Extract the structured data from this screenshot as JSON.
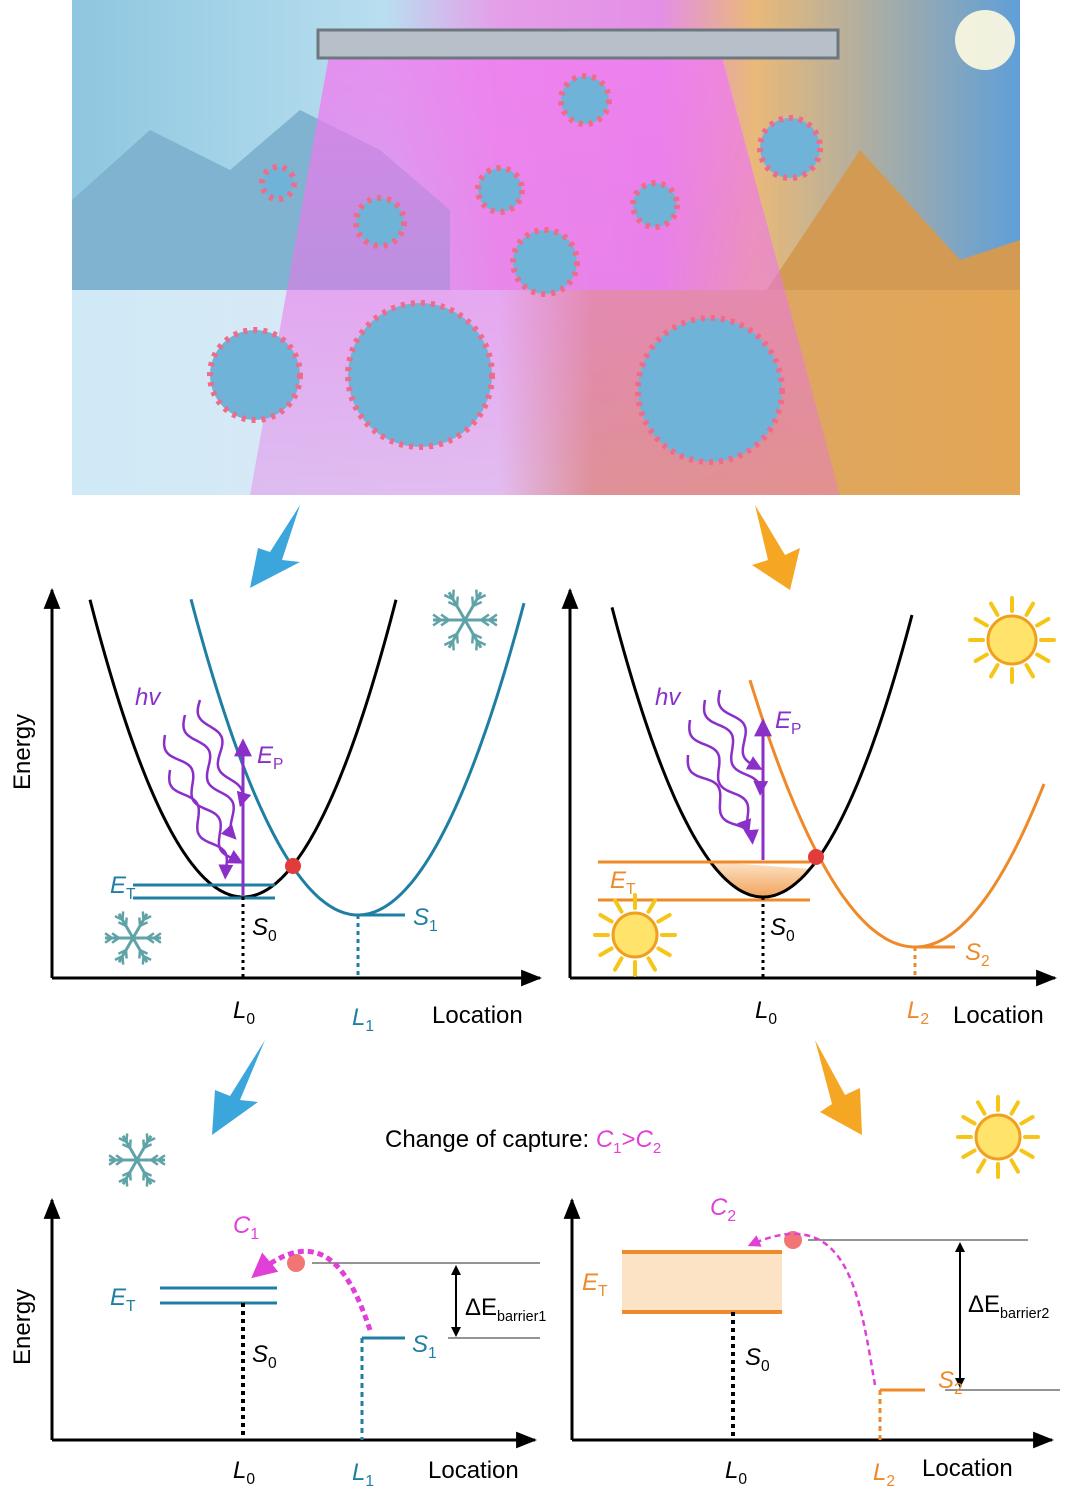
{
  "panels": [
    {
      "y_label": "Energy",
      "photon": "hv",
      "pump": {
        "main": "E",
        "sub": "P"
      },
      "trap": {
        "main": "E",
        "sub": "T"
      },
      "ground": {
        "main": "S",
        "sub": "0"
      },
      "state": {
        "main": "S",
        "sub": "1"
      },
      "x_ticks": [
        {
          "main": "L",
          "sub": "0"
        },
        {
          "main": "L",
          "sub": "1"
        }
      ],
      "x_label": "Location"
    },
    {
      "photon": "hv",
      "pump": {
        "main": "E",
        "sub": "P"
      },
      "trap": {
        "main": "E",
        "sub": "T"
      },
      "ground": {
        "main": "S",
        "sub": "0"
      },
      "state": {
        "main": "S",
        "sub": "2"
      },
      "x_ticks": [
        {
          "main": "L",
          "sub": "0"
        },
        {
          "main": "L",
          "sub": "2"
        }
      ],
      "x_label": "Location"
    }
  ],
  "caption": {
    "text": "Change of capture: ",
    "left": {
      "main": "C",
      "sub": "1"
    },
    "operator": ">",
    "right": {
      "main": "C",
      "sub": "2"
    }
  },
  "bottom_panels": [
    {
      "y_label": "Energy",
      "capture": {
        "main": "C",
        "sub": "1"
      },
      "trap": {
        "main": "E",
        "sub": "T"
      },
      "ground": {
        "main": "S",
        "sub": "0"
      },
      "state": {
        "main": "S",
        "sub": "1"
      },
      "barrier": {
        "main": "ΔE",
        "sub": "barrier1"
      },
      "x_ticks": [
        {
          "main": "L",
          "sub": "0"
        },
        {
          "main": "L",
          "sub": "1"
        }
      ],
      "x_label": "Location"
    },
    {
      "capture": {
        "main": "C",
        "sub": "2"
      },
      "trap": {
        "main": "E",
        "sub": "T"
      },
      "ground": {
        "main": "S",
        "sub": "0"
      },
      "state": {
        "main": "S",
        "sub": "2"
      },
      "barrier": {
        "main": "ΔE",
        "sub": "barrier2"
      },
      "x_ticks": [
        {
          "main": "L",
          "sub": "0"
        },
        {
          "main": "L",
          "sub": "2"
        }
      ],
      "x_label": "Location"
    }
  ]
}
